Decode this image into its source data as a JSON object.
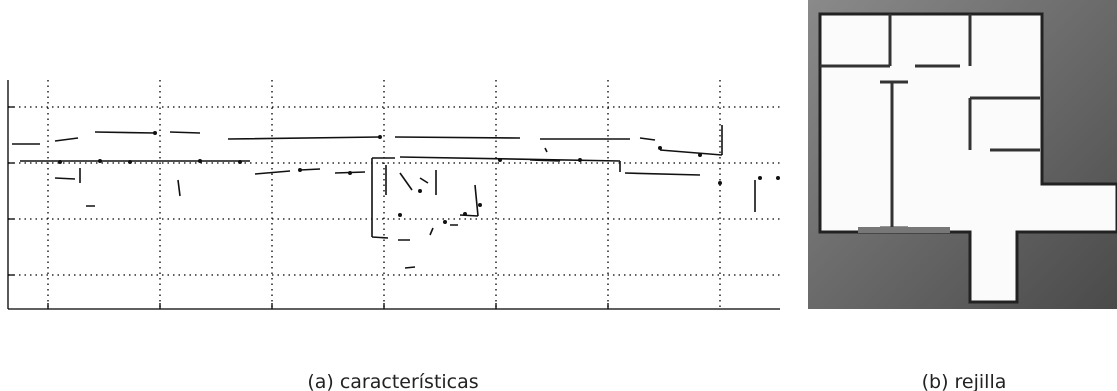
{
  "subfigures": [
    {
      "caption": "(a) características"
    },
    {
      "caption": "(b) rejilla"
    }
  ]
}
